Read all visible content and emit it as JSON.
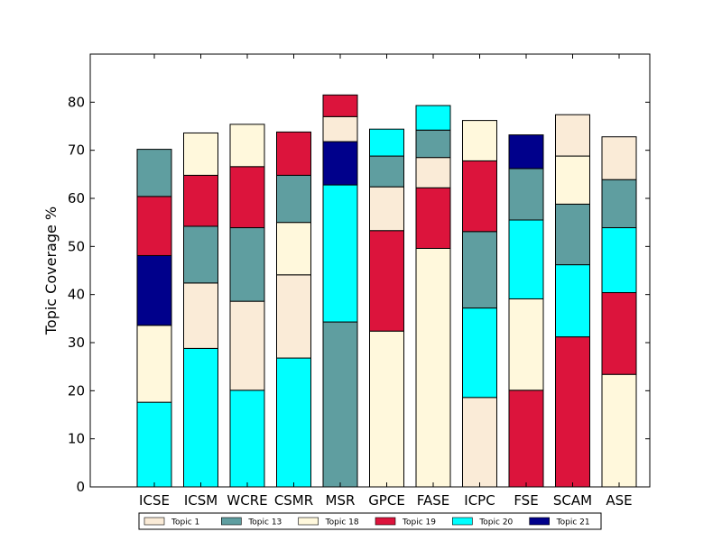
{
  "chart_data": {
    "type": "bar",
    "stacked": true,
    "title": "",
    "xlabel": "",
    "ylabel": "Topic Coverage %",
    "ylim": [
      0,
      90
    ],
    "yticks": [
      0,
      10,
      20,
      30,
      40,
      50,
      60,
      70,
      80
    ],
    "grid": false,
    "legend_position": "bottom",
    "categories": [
      "ICSE",
      "ICSM",
      "WCRE",
      "CSMR",
      "MSR",
      "GPCE",
      "FASE",
      "ICPC",
      "FSE",
      "SCAM",
      "ASE"
    ],
    "topics": [
      {
        "name": "Topic 1",
        "color": "#faebd7"
      },
      {
        "name": "Topic 13",
        "color": "#5f9ea0"
      },
      {
        "name": "Topic 18",
        "color": "#fff8dc"
      },
      {
        "name": "Topic 19",
        "color": "#dc143c"
      },
      {
        "name": "Topic 20",
        "color": "#00ffff"
      },
      {
        "name": "Topic 21",
        "color": "#00008b"
      }
    ],
    "stacks": [
      [
        {
          "topic": "Topic 20",
          "value": 17.6
        },
        {
          "topic": "Topic 18",
          "value": 16.0
        },
        {
          "topic": "Topic 21",
          "value": 14.5
        },
        {
          "topic": "Topic 19",
          "value": 12.3
        },
        {
          "topic": "Topic 13",
          "value": 9.8
        }
      ],
      [
        {
          "topic": "Topic 20",
          "value": 28.8
        },
        {
          "topic": "Topic 1",
          "value": 13.6
        },
        {
          "topic": "Topic 13",
          "value": 11.8
        },
        {
          "topic": "Topic 19",
          "value": 10.6
        },
        {
          "topic": "Topic 18",
          "value": 8.8
        }
      ],
      [
        {
          "topic": "Topic 20",
          "value": 20.1
        },
        {
          "topic": "Topic 1",
          "value": 18.5
        },
        {
          "topic": "Topic 13",
          "value": 15.3
        },
        {
          "topic": "Topic 19",
          "value": 12.7
        },
        {
          "topic": "Topic 18",
          "value": 8.8
        }
      ],
      [
        {
          "topic": "Topic 20",
          "value": 26.8
        },
        {
          "topic": "Topic 1",
          "value": 17.3
        },
        {
          "topic": "Topic 18",
          "value": 10.9
        },
        {
          "topic": "Topic 13",
          "value": 9.8
        },
        {
          "topic": "Topic 19",
          "value": 9.0
        }
      ],
      [
        {
          "topic": "Topic 13",
          "value": 34.3
        },
        {
          "topic": "Topic 20",
          "value": 28.5
        },
        {
          "topic": "Topic 21",
          "value": 9.0
        },
        {
          "topic": "Topic 1",
          "value": 5.2
        },
        {
          "topic": "Topic 19",
          "value": 4.5
        }
      ],
      [
        {
          "topic": "Topic 18",
          "value": 32.4
        },
        {
          "topic": "Topic 19",
          "value": 20.9
        },
        {
          "topic": "Topic 1",
          "value": 9.1
        },
        {
          "topic": "Topic 13",
          "value": 6.4
        },
        {
          "topic": "Topic 20",
          "value": 5.6
        }
      ],
      [
        {
          "topic": "Topic 18",
          "value": 49.6
        },
        {
          "topic": "Topic 19",
          "value": 12.6
        },
        {
          "topic": "Topic 1",
          "value": 6.3
        },
        {
          "topic": "Topic 13",
          "value": 5.7
        },
        {
          "topic": "Topic 20",
          "value": 5.1
        }
      ],
      [
        {
          "topic": "Topic 1",
          "value": 18.6
        },
        {
          "topic": "Topic 20",
          "value": 18.6
        },
        {
          "topic": "Topic 13",
          "value": 15.9
        },
        {
          "topic": "Topic 19",
          "value": 14.7
        },
        {
          "topic": "Topic 18",
          "value": 8.4
        }
      ],
      [
        {
          "topic": "Topic 19",
          "value": 20.1
        },
        {
          "topic": "Topic 18",
          "value": 19.0
        },
        {
          "topic": "Topic 20",
          "value": 16.4
        },
        {
          "topic": "Topic 13",
          "value": 10.7
        },
        {
          "topic": "Topic 21",
          "value": 7.0
        }
      ],
      [
        {
          "topic": "Topic 19",
          "value": 31.2
        },
        {
          "topic": "Topic 20",
          "value": 15.0
        },
        {
          "topic": "Topic 13",
          "value": 12.6
        },
        {
          "topic": "Topic 18",
          "value": 10.0
        },
        {
          "topic": "Topic 1",
          "value": 8.6
        }
      ],
      [
        {
          "topic": "Topic 18",
          "value": 23.4
        },
        {
          "topic": "Topic 19",
          "value": 17.0
        },
        {
          "topic": "Topic 20",
          "value": 13.5
        },
        {
          "topic": "Topic 13",
          "value": 10.0
        },
        {
          "topic": "Topic 1",
          "value": 8.9
        }
      ]
    ]
  }
}
